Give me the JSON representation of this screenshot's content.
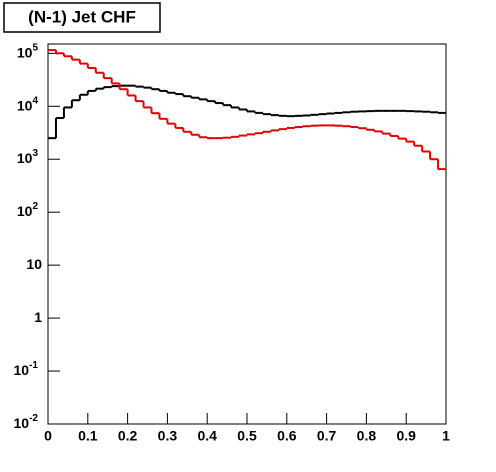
{
  "chart_data": {
    "type": "histogram",
    "title": "(N-1) Jet CHF",
    "bins": [
      0,
      0.02,
      0.04,
      0.06,
      0.08,
      0.1,
      0.12,
      0.14,
      0.16,
      0.18,
      0.2,
      0.22,
      0.24,
      0.26,
      0.28,
      0.3,
      0.32,
      0.34,
      0.36,
      0.38,
      0.4,
      0.42,
      0.44,
      0.46,
      0.48,
      0.5,
      0.52,
      0.54,
      0.56,
      0.58,
      0.6,
      0.62,
      0.64,
      0.66,
      0.68,
      0.7,
      0.72,
      0.74,
      0.76,
      0.78,
      0.8,
      0.82,
      0.84,
      0.86,
      0.88,
      0.9,
      0.92,
      0.94,
      0.96,
      0.98,
      1
    ],
    "series": [
      {
        "color": "#000000",
        "values": [
          2500,
          6000,
          9500,
          13000,
          16500,
          19500,
          21500,
          23000,
          24000,
          24500,
          24500,
          23500,
          22500,
          21000,
          19500,
          18000,
          17000,
          15500,
          14500,
          13500,
          12500,
          11500,
          10500,
          9500,
          8700,
          8000,
          7500,
          7100,
          6800,
          6600,
          6500,
          6600,
          6700,
          6900,
          7100,
          7300,
          7500,
          7700,
          7900,
          8000,
          8100,
          8200,
          8200,
          8200,
          8200,
          8100,
          8000,
          7900,
          7700,
          7500
        ]
      },
      {
        "color": "#e00000",
        "values": [
          115000,
          100000,
          88000,
          76000,
          64000,
          53000,
          43000,
          34000,
          27000,
          21000,
          16000,
          12500,
          9500,
          7400,
          5800,
          4700,
          3900,
          3300,
          2900,
          2600,
          2500,
          2500,
          2550,
          2650,
          2800,
          2950,
          3100,
          3300,
          3500,
          3700,
          3900,
          4050,
          4200,
          4300,
          4350,
          4350,
          4300,
          4200,
          4050,
          3850,
          3600,
          3350,
          3050,
          2750,
          2450,
          2150,
          1800,
          1400,
          1000,
          650
        ]
      }
    ],
    "xlim": [
      0,
      1
    ],
    "xticks": [
      0,
      0.1,
      0.2,
      0.3,
      0.4,
      0.5,
      0.6,
      0.7,
      0.8,
      0.9,
      1
    ],
    "ylim": [
      0.01,
      150000
    ],
    "log_y": true,
    "yticks": [
      {
        "value": 0.01,
        "label": "10",
        "sup": "-2"
      },
      {
        "value": 0.1,
        "label": "10",
        "sup": "-1"
      },
      1,
      10,
      {
        "value": 100,
        "label": "10",
        "sup": "2"
      },
      {
        "value": 1000,
        "label": "10",
        "sup": "3"
      },
      {
        "value": 10000,
        "label": "10",
        "sup": "4"
      },
      {
        "value": 100000,
        "label": "10",
        "sup": "5"
      }
    ]
  }
}
